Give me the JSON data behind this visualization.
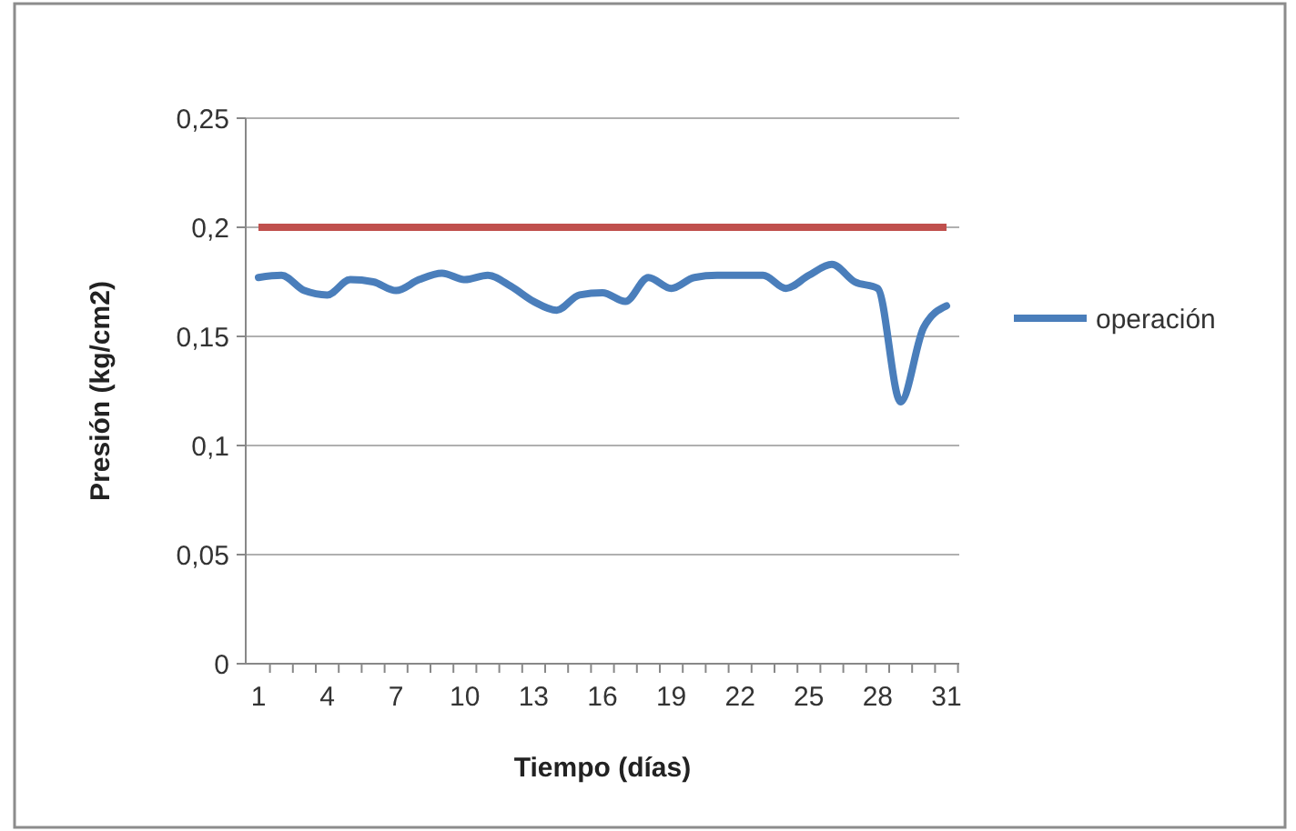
{
  "chart_data": {
    "type": "line",
    "xlabel": "Tiempo (días)",
    "ylabel": "Presión (kg/cm2)",
    "categories": [
      "1",
      null,
      null,
      "4",
      null,
      null,
      "7",
      null,
      null,
      "10",
      null,
      null,
      "13",
      null,
      null,
      "16",
      null,
      null,
      "19",
      null,
      null,
      "22",
      null,
      null,
      "25",
      null,
      null,
      "28",
      null,
      null,
      "31"
    ],
    "series": [
      {
        "name": "operación",
        "color": "#4a7ebb",
        "values": [
          0.177,
          0.178,
          0.171,
          0.169,
          0.176,
          0.175,
          0.171,
          0.176,
          0.179,
          0.176,
          0.178,
          0.173,
          0.166,
          0.162,
          0.169,
          0.17,
          0.166,
          0.177,
          0.172,
          0.177,
          0.178,
          0.178,
          0.178,
          0.172,
          0.178,
          0.183,
          0.175,
          0.172,
          0.12,
          0.154,
          0.164
        ]
      }
    ],
    "ylim": [
      0,
      0.25
    ],
    "yticks": [
      {
        "value": 0,
        "label": "0"
      },
      {
        "value": 0.05,
        "label": "0,05"
      },
      {
        "value": 0.1,
        "label": "0,1"
      },
      {
        "value": 0.15,
        "label": "0,15"
      },
      {
        "value": 0.2,
        "label": "0,2"
      },
      {
        "value": 0.25,
        "label": "0,25"
      }
    ],
    "ref_lines": [
      {
        "axis": "y",
        "value": 0.2,
        "color": "#c0504d"
      }
    ],
    "grid": "y",
    "legend": "right",
    "marker": "none",
    "line_style": "solid"
  }
}
